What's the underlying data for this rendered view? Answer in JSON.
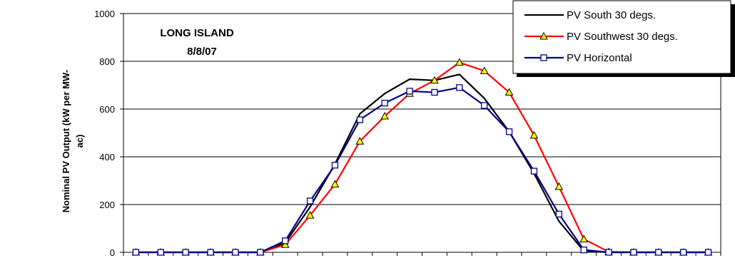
{
  "chart_data": {
    "type": "line",
    "title": "",
    "annotation": [
      "LONG ISLAND",
      "8/8/07"
    ],
    "ylabel": [
      "Nominal PV Output (kW per MW-",
      "ac)"
    ],
    "xlabel": "",
    "ylim": [
      0,
      1000
    ],
    "yticks": [
      "0",
      "200",
      "400",
      "600",
      "800",
      "1000"
    ],
    "grid": true,
    "legend_position": "top-right",
    "x": [
      1,
      2,
      3,
      4,
      5,
      6,
      7,
      8,
      9,
      10,
      11,
      12,
      13,
      14,
      15,
      16,
      17,
      18,
      19,
      20,
      21,
      22,
      23,
      24
    ],
    "series": [
      {
        "name": "PV South 30 degs.",
        "color": "#000000",
        "marker": "none",
        "values": [
          0,
          0,
          0,
          0,
          0,
          0,
          40,
          190,
          370,
          580,
          665,
          725,
          720,
          745,
          645,
          505,
          330,
          130,
          5,
          0,
          0,
          0,
          0,
          0
        ]
      },
      {
        "name": "PV Southwest 30 degs.",
        "color": "#ff0000",
        "marker": "triangle",
        "marker_fill": "#ffff00",
        "values": [
          0,
          0,
          0,
          0,
          0,
          0,
          32,
          155,
          285,
          465,
          570,
          665,
          720,
          795,
          760,
          670,
          490,
          275,
          55,
          2,
          0,
          0,
          0,
          0
        ]
      },
      {
        "name": "PV Horizontal",
        "color": "#00008b",
        "marker": "square",
        "marker_fill": "#ffffff",
        "values": [
          0,
          0,
          0,
          0,
          0,
          0,
          48,
          215,
          365,
          555,
          625,
          675,
          670,
          690,
          615,
          505,
          340,
          160,
          10,
          0,
          0,
          0,
          0,
          0
        ]
      }
    ]
  }
}
